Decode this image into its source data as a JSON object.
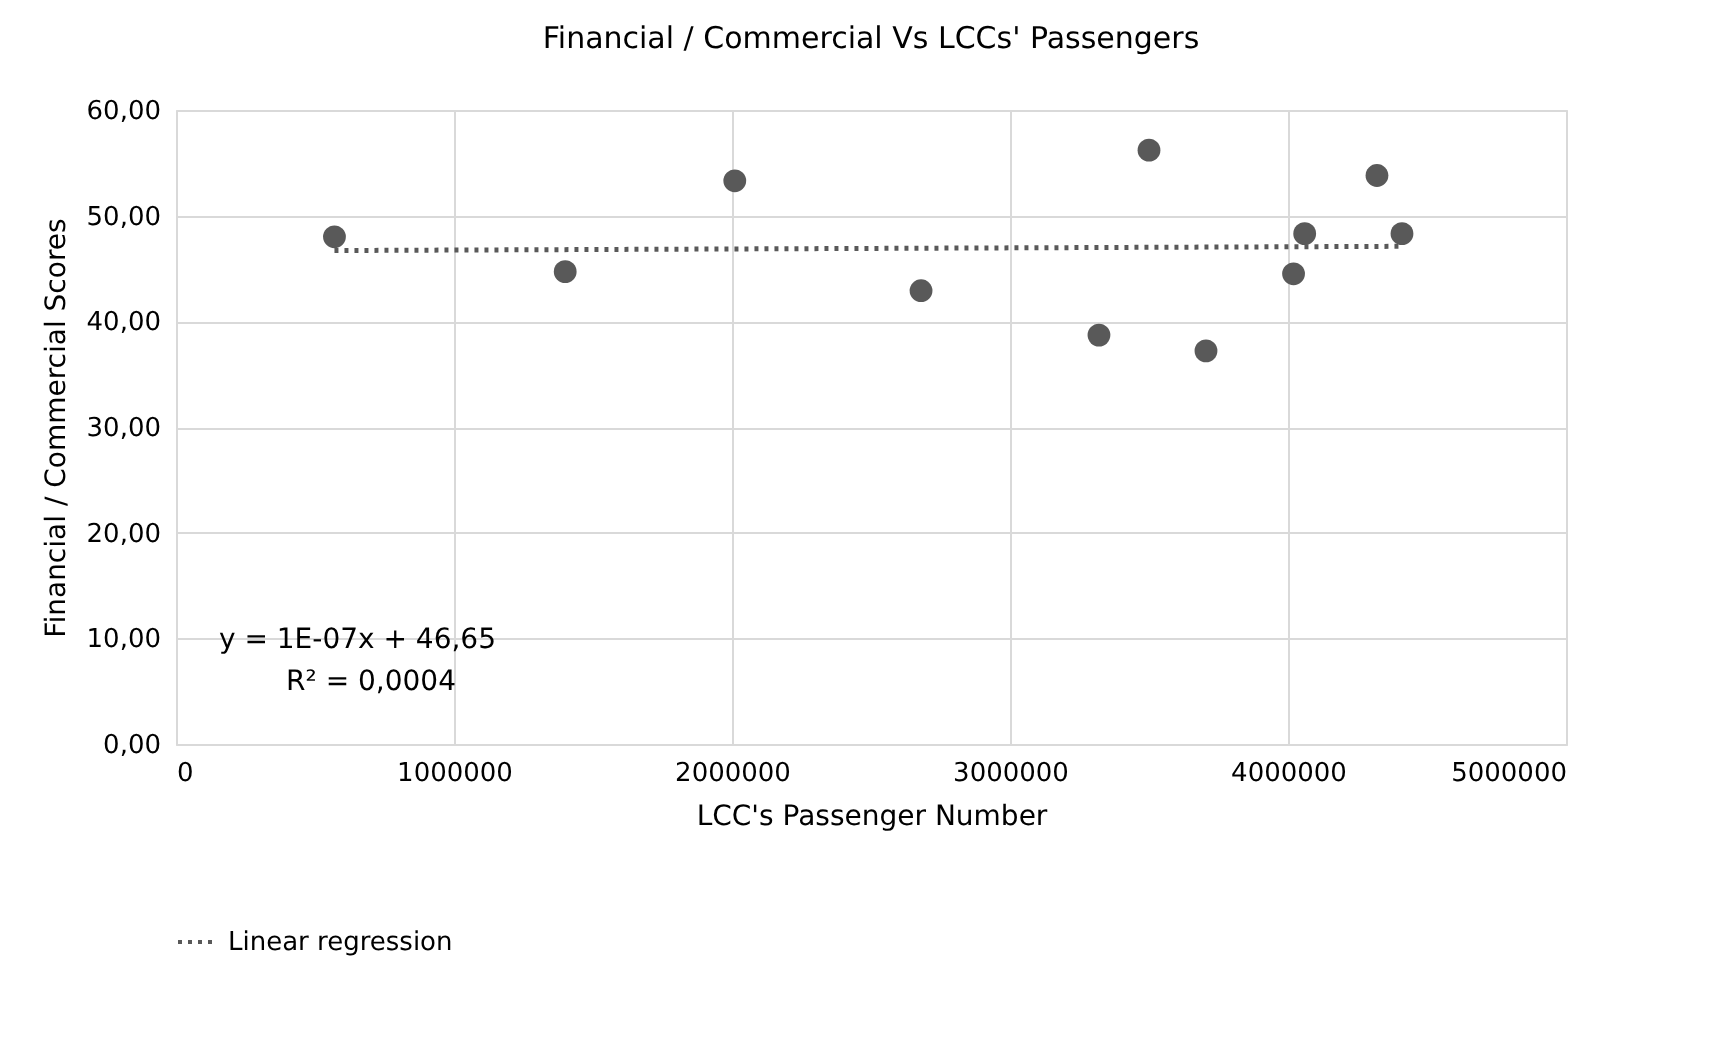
{
  "chart_data": {
    "type": "scatter",
    "title": "Financial / Commercial Vs LCCs' Passengers",
    "xlabel": "LCC's Passenger Number",
    "ylabel": "Financial / Commercial Scores",
    "x": [
      570000,
      1400000,
      2010000,
      2680000,
      3320000,
      3500000,
      3705000,
      4020000,
      4060000,
      4320000,
      4410000
    ],
    "series": [
      {
        "marker": "circle",
        "color": "#595959",
        "values": [
          48.0,
          44.7,
          53.3,
          42.9,
          38.7,
          56.2,
          37.2,
          44.5,
          48.3,
          53.8,
          48.3
        ]
      },
      {
        "type": "line",
        "name": "Linear regression",
        "color": "#595959",
        "line_style": "dotted",
        "x": [
          570000,
          4410000
        ],
        "values": [
          46.7,
          47.1
        ]
      }
    ],
    "xlim": [
      0,
      5000000
    ],
    "xticks": [
      0,
      1000000,
      2000000,
      3000000,
      4000000,
      5000000
    ],
    "ylim": [
      0,
      60
    ],
    "yticks": [
      {
        "value": 0,
        "label": "0,00"
      },
      {
        "value": 10,
        "label": "10,00"
      },
      {
        "value": 20,
        "label": "20,00"
      },
      {
        "value": 30,
        "label": "30,00"
      },
      {
        "value": 40,
        "label": "40,00"
      },
      {
        "value": 50,
        "label": "50,00"
      },
      {
        "value": 60,
        "label": "60,00"
      }
    ],
    "annotations": [
      "y = 1E-07x + 46,65",
      "R² = 0,0004"
    ],
    "grid": true,
    "legend": "bottom"
  }
}
